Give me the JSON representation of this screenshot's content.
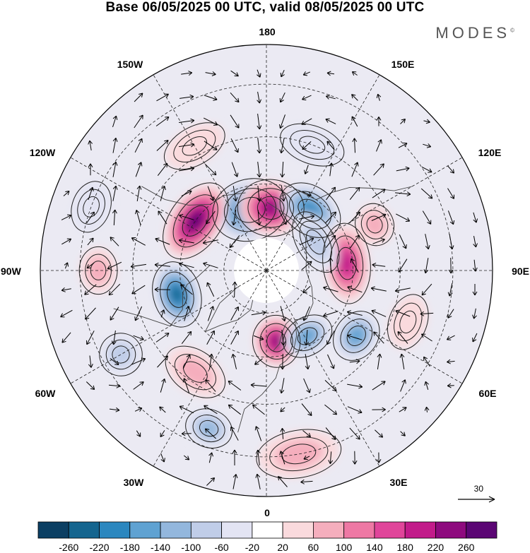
{
  "title": "Base 06/05/2025 00 UTC, valid 08/05/2025 00 UTC",
  "brand": {
    "name": "MODES",
    "mark": "©"
  },
  "map": {
    "projection": "north-polar-stereographic",
    "longitude_labels": {
      "top": "180",
      "bottom": "0",
      "left": "90W",
      "right": "90E",
      "upper_left": "150W",
      "upper_right": "150E",
      "left_upper": "120W",
      "right_upper": "120E",
      "left_lower": "60W",
      "right_lower": "60E",
      "lower_left": "30W",
      "lower_right": "30E"
    },
    "anomaly_field": [
      {
        "lon": -165,
        "lat": 68,
        "value": -230,
        "rx": 0.16,
        "ry": 0.13
      },
      {
        "lon": 176,
        "lat": 68,
        "value": 260,
        "rx": 0.14,
        "ry": 0.12
      },
      {
        "lon": 144,
        "lat": 64,
        "value": -200,
        "rx": 0.14,
        "ry": 0.1
      },
      {
        "lon": -125,
        "lat": 60,
        "value": 270,
        "rx": 0.18,
        "ry": 0.11
      },
      {
        "lon": -75,
        "lat": 58,
        "value": -230,
        "rx": 0.14,
        "ry": 0.1
      },
      {
        "lon": 95,
        "lat": 62,
        "value": 200,
        "rx": 0.17,
        "ry": 0.1
      },
      {
        "lon": 113,
        "lat": 50,
        "value": 80,
        "rx": 0.09,
        "ry": 0.08
      },
      {
        "lon": 8,
        "lat": 65,
        "value": 230,
        "rx": 0.1,
        "ry": 0.11
      },
      {
        "lon": 32,
        "lat": 63,
        "value": -170,
        "rx": 0.11,
        "ry": 0.08
      },
      {
        "lon": 54,
        "lat": 52,
        "value": -150,
        "rx": 0.11,
        "ry": 0.09
      },
      {
        "lon": 120,
        "lat": 70,
        "value": -90,
        "rx": 0.14,
        "ry": 0.08
      },
      {
        "lon": -35,
        "lat": 48,
        "value": 90,
        "rx": 0.14,
        "ry": 0.09
      },
      {
        "lon": -60,
        "lat": 35,
        "value": -90,
        "rx": 0.09,
        "ry": 0.09
      },
      {
        "lon": -90,
        "lat": 35,
        "value": 70,
        "rx": 0.1,
        "ry": 0.08
      },
      {
        "lon": -20,
        "lat": 35,
        "value": -110,
        "rx": 0.1,
        "ry": 0.08
      },
      {
        "lon": 10,
        "lat": 30,
        "value": 90,
        "rx": 0.18,
        "ry": 0.1
      },
      {
        "lon": -150,
        "lat": 42,
        "value": 60,
        "rx": 0.14,
        "ry": 0.08
      },
      {
        "lon": 160,
        "lat": 45,
        "value": -60,
        "rx": 0.14,
        "ry": 0.08
      },
      {
        "lon": 70,
        "lat": 40,
        "value": 60,
        "rx": 0.12,
        "ry": 0.08
      },
      {
        "lon": -110,
        "lat": 30,
        "value": -50,
        "rx": 0.11,
        "ry": 0.08
      }
    ],
    "wind_reference": {
      "value": "30"
    }
  },
  "colorbar": {
    "labels": [
      "-260",
      "-220",
      "-180",
      "-140",
      "-100",
      "-60",
      "-20",
      "20",
      "60",
      "100",
      "140",
      "180",
      "220",
      "260"
    ],
    "colors": [
      "#0b3f63",
      "#14658f",
      "#2b87bf",
      "#5fa2d2",
      "#93b7dd",
      "#c0cde8",
      "#e3e4f3",
      "#ffffff",
      "#fadadd",
      "#f5aebd",
      "#ee78a4",
      "#e0459a",
      "#c21b8a",
      "#8e0a7e",
      "#5b0674"
    ]
  }
}
